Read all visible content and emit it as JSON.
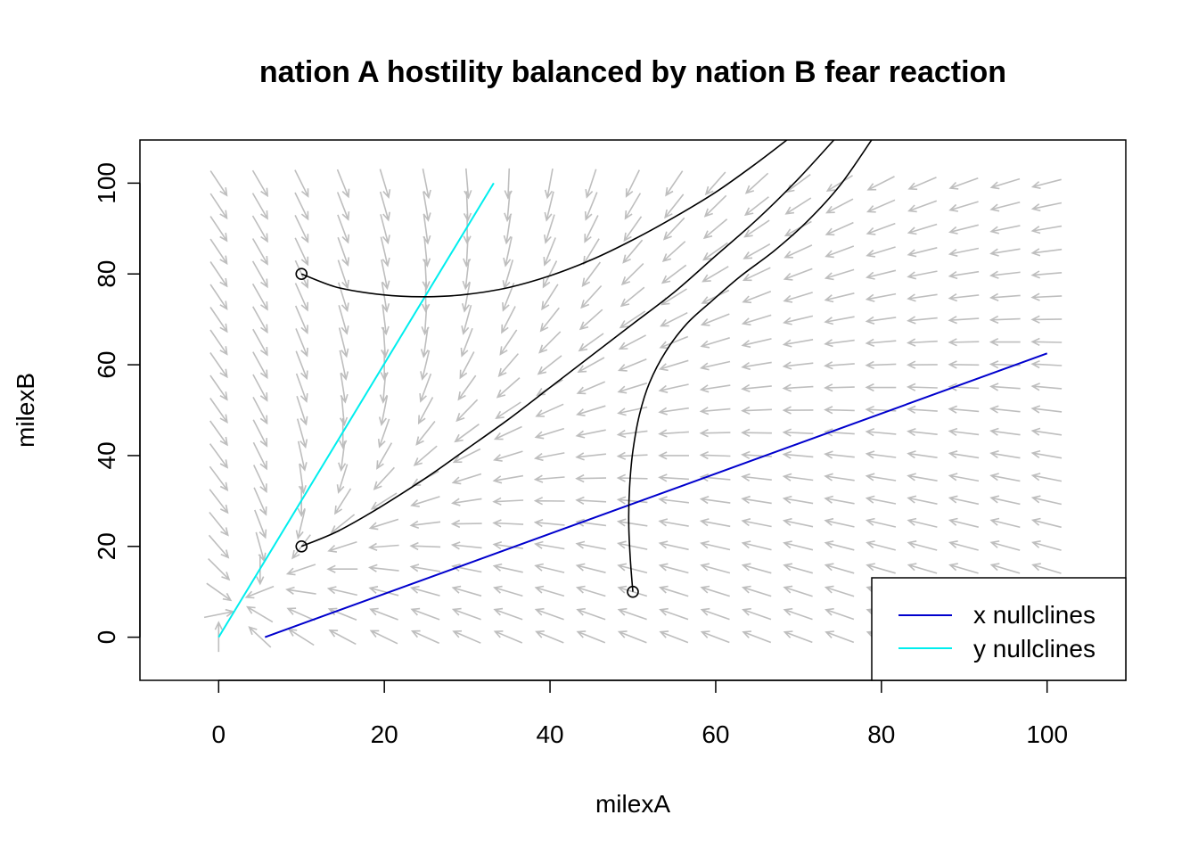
{
  "chart_data": {
    "type": "line",
    "title": "nation A hostility balanced by nation B fear reaction",
    "xlabel": "milexA",
    "ylabel": "milexB",
    "xlim": [
      -9.5,
      109.5
    ],
    "ylim": [
      -9.5,
      109.5
    ],
    "x_ticks": [
      0,
      20,
      40,
      60,
      80,
      100
    ],
    "y_ticks": [
      0,
      20,
      40,
      60,
      80,
      100
    ],
    "grid": false,
    "legend_position": "bottom-right",
    "legend": [
      {
        "label": "x nullclines",
        "color": "#0000cd"
      },
      {
        "label": "y nullclines",
        "color": "#00eeee"
      }
    ],
    "series": [
      {
        "name": "x nullclines",
        "color": "#0000cd",
        "x": [
          5.6,
          100
        ],
        "y": [
          0,
          62.5
        ]
      },
      {
        "name": "y nullclines",
        "color": "#00eeee",
        "x": [
          0,
          33.2
        ],
        "y": [
          0,
          100
        ]
      }
    ],
    "trajectories": [
      {
        "color": "#000000",
        "start": [
          10,
          80
        ],
        "x": [
          10,
          14,
          18,
          22,
          26,
          30,
          35,
          40,
          45,
          50,
          55,
          60,
          65,
          70
        ],
        "y": [
          80,
          77.2,
          75.8,
          75.1,
          75.0,
          75.5,
          77.0,
          79.6,
          83.1,
          87.5,
          92.5,
          98.0,
          104.5,
          111.5
        ]
      },
      {
        "color": "#000000",
        "start": [
          10,
          20
        ],
        "x": [
          10,
          14,
          18,
          22,
          26,
          30,
          35,
          40,
          45,
          50,
          55,
          60,
          65,
          70,
          75
        ],
        "y": [
          20,
          23,
          27,
          31.5,
          36.3,
          41.5,
          48,
          55,
          62,
          69,
          76,
          84,
          92,
          101,
          111
        ]
      },
      {
        "color": "#000000",
        "start": [
          50,
          10
        ],
        "x": [
          50,
          49.7,
          49.5,
          49.6,
          50.0,
          50.8,
          52,
          54,
          56.5,
          59.5,
          63,
          67,
          71,
          75,
          79
        ],
        "y": [
          10,
          17,
          25,
          33,
          41,
          49,
          56,
          63,
          69,
          74,
          79.5,
          85,
          91.5,
          99.5,
          110
        ]
      }
    ],
    "vector_field": {
      "color": "#bebebe",
      "x_range": [
        0,
        100
      ],
      "y_range": [
        0,
        100
      ],
      "x_count": 21,
      "y_count": 21,
      "a_coef": 0.6,
      "a_offset": -60,
      "b_coef": 3.0,
      "b_offset": -1.0,
      "b_scale": 0.62
    }
  }
}
